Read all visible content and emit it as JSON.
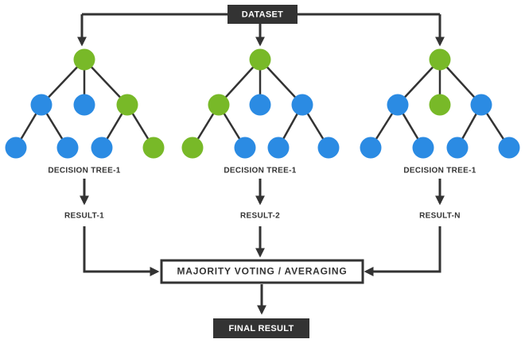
{
  "dataset": "DATASET",
  "trees": [
    {
      "label": "DECISION TREE-1",
      "result": "RESULT-1"
    },
    {
      "label": "DECISION TREE-1",
      "result": "RESULT-2"
    },
    {
      "label": "DECISION TREE-1",
      "result": "RESULT-N"
    }
  ],
  "aggregation": "MAJORITY VOTING / AVERAGING",
  "final": "FINAL RESULT"
}
